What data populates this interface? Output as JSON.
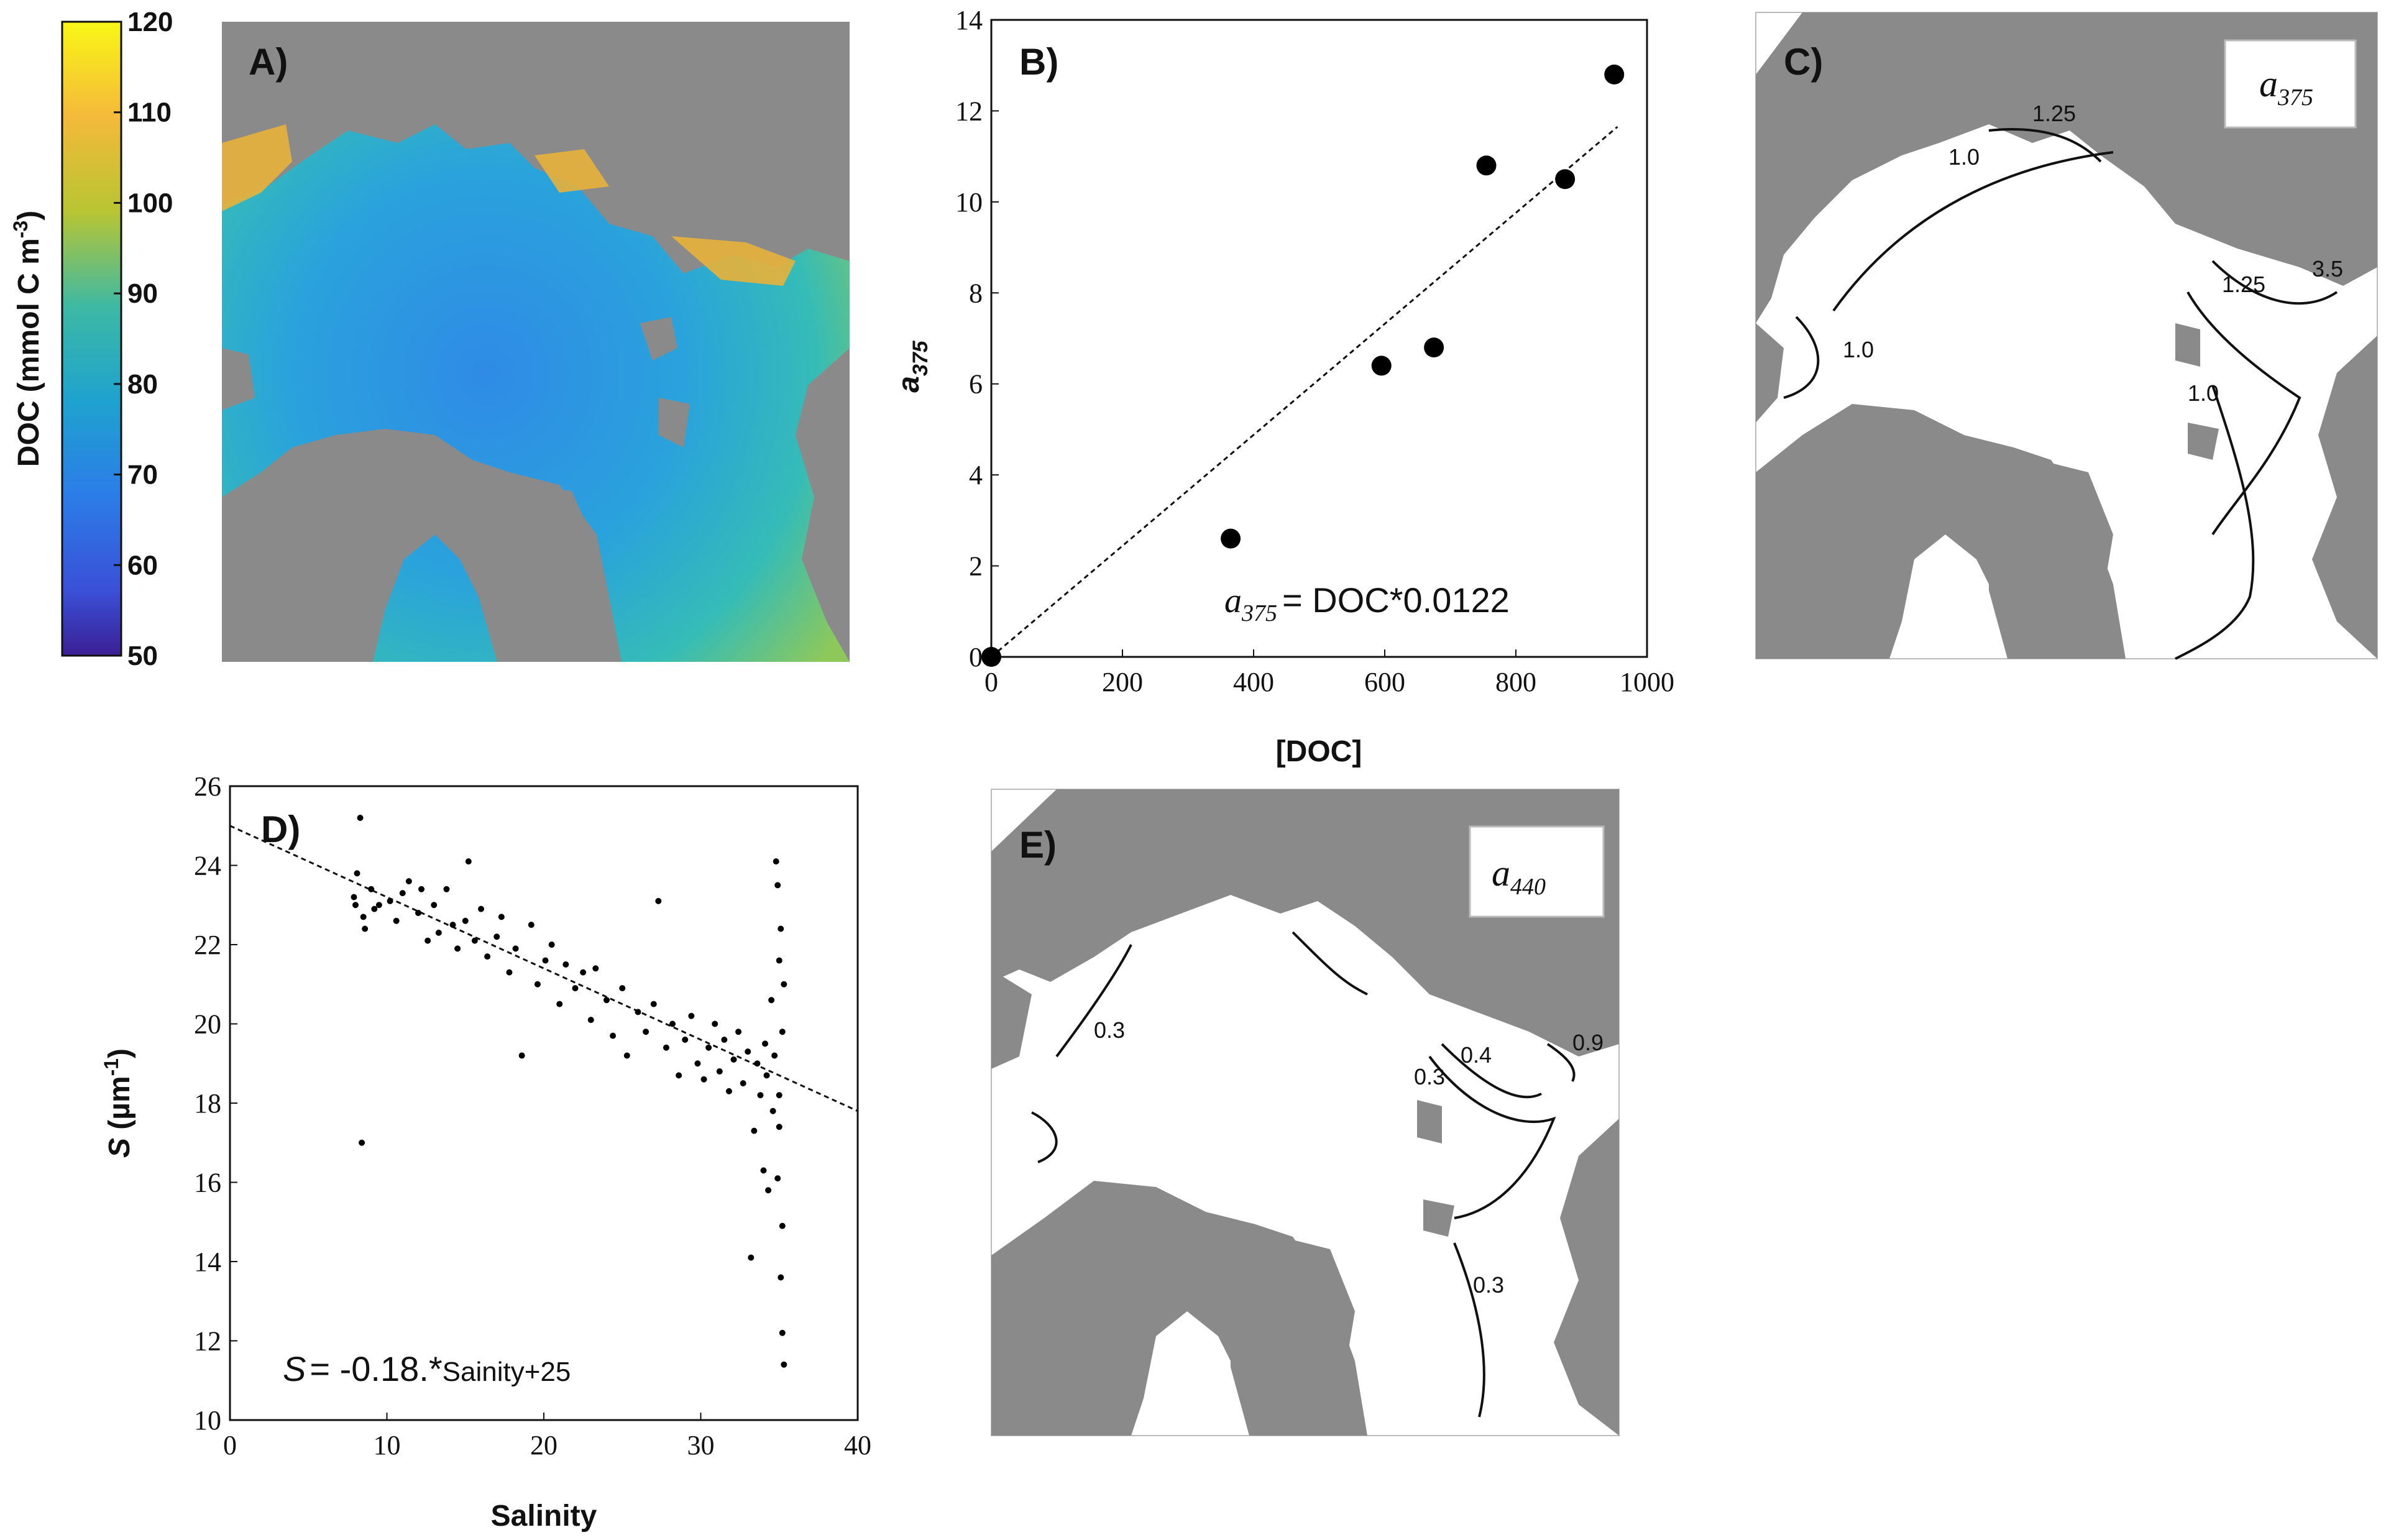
{
  "colorbar": {
    "label": "DOC (mmol C m",
    "label_sup": "-3",
    "label_close": ")",
    "ticks": [
      "120",
      "110",
      "100",
      "90",
      "80",
      "70",
      "60",
      "50"
    ],
    "range": [
      50,
      120
    ]
  },
  "panels": {
    "A": {
      "label": "A)"
    },
    "B": {
      "label": "B)"
    },
    "C": {
      "label": "C)",
      "box_main": "a",
      "box_sub": "375",
      "contours": [
        "1.25",
        "1.0",
        "1.25",
        "3.5",
        "1.0",
        "1.0"
      ]
    },
    "D": {
      "label": "D)"
    },
    "E": {
      "label": "E)",
      "box_main": "a",
      "box_sub": "440",
      "contours": [
        "0.3",
        "0.4",
        "0.9",
        "0.3",
        "0.3"
      ]
    }
  },
  "chart_data": [
    {
      "id": "B",
      "type": "scatter",
      "xlabel": "[DOC]",
      "ylabel_main": "a",
      "ylabel_sub": "375",
      "xlim": [
        0,
        1000
      ],
      "ylim": [
        0,
        14
      ],
      "xticks": [
        "0",
        "200",
        "400",
        "600",
        "800",
        "1000"
      ],
      "yticks": [
        "0",
        "2",
        "4",
        "6",
        "8",
        "10",
        "12",
        "14"
      ],
      "points": [
        [
          0,
          0
        ],
        [
          365,
          2.6
        ],
        [
          595,
          6.4
        ],
        [
          675,
          6.8
        ],
        [
          755,
          10.8
        ],
        [
          875,
          10.5
        ],
        [
          950,
          12.8
        ]
      ],
      "fit": {
        "slope": 0.0122,
        "intercept": 0
      },
      "equation": {
        "lhs_main": "a",
        "lhs_sub": "375",
        "rhs": "= DOC*0.0122"
      }
    },
    {
      "id": "D",
      "type": "scatter",
      "xlabel": "Salinity",
      "ylabel_main": "S",
      "ylabel_unit": " (µm",
      "ylabel_sup": "-1",
      "ylabel_close": ")",
      "xlim": [
        0,
        40
      ],
      "ylim": [
        10,
        26
      ],
      "xticks": [
        "0",
        "10",
        "20",
        "30",
        "40"
      ],
      "yticks": [
        "10",
        "12",
        "14",
        "16",
        "18",
        "20",
        "22",
        "24",
        "26"
      ],
      "fit": {
        "slope": -0.18,
        "intercept": 25
      },
      "equation": {
        "lhs": "S",
        "rhs_a": "= -0.18.*",
        "rhs_b": "Sainity+25"
      },
      "points": [
        [
          8.3,
          25.2
        ],
        [
          8.4,
          17.0
        ],
        [
          8.1,
          23.8
        ],
        [
          8.0,
          23.0
        ],
        [
          8.5,
          22.7
        ],
        [
          9.0,
          23.4
        ],
        [
          8.6,
          22.4
        ],
        [
          9.2,
          22.9
        ],
        [
          7.9,
          23.2
        ],
        [
          9.5,
          23.0
        ],
        [
          10.2,
          23.1
        ],
        [
          10.6,
          22.6
        ],
        [
          11.0,
          23.3
        ],
        [
          11.4,
          23.6
        ],
        [
          12.0,
          22.8
        ],
        [
          12.2,
          23.4
        ],
        [
          12.6,
          22.1
        ],
        [
          13.0,
          23.0
        ],
        [
          13.3,
          22.3
        ],
        [
          13.8,
          23.4
        ],
        [
          14.2,
          22.5
        ],
        [
          14.5,
          21.9
        ],
        [
          15.0,
          22.6
        ],
        [
          15.2,
          24.1
        ],
        [
          15.6,
          22.1
        ],
        [
          16.0,
          22.9
        ],
        [
          16.4,
          21.7
        ],
        [
          17.0,
          22.2
        ],
        [
          17.3,
          22.7
        ],
        [
          17.8,
          21.3
        ],
        [
          18.2,
          21.9
        ],
        [
          18.6,
          19.2
        ],
        [
          19.2,
          22.5
        ],
        [
          19.6,
          21.0
        ],
        [
          20.1,
          21.6
        ],
        [
          20.5,
          22.0
        ],
        [
          21.0,
          20.5
        ],
        [
          21.4,
          21.5
        ],
        [
          22.0,
          20.9
        ],
        [
          22.5,
          21.3
        ],
        [
          23.0,
          20.1
        ],
        [
          23.3,
          21.4
        ],
        [
          24.0,
          20.6
        ],
        [
          24.4,
          19.7
        ],
        [
          25.0,
          20.9
        ],
        [
          25.3,
          19.2
        ],
        [
          26.0,
          20.3
        ],
        [
          26.5,
          19.8
        ],
        [
          27.0,
          20.5
        ],
        [
          27.3,
          23.1
        ],
        [
          27.8,
          19.4
        ],
        [
          28.2,
          20.0
        ],
        [
          28.6,
          18.7
        ],
        [
          29.0,
          19.6
        ],
        [
          29.4,
          20.2
        ],
        [
          29.8,
          19.0
        ],
        [
          30.2,
          18.6
        ],
        [
          30.5,
          19.4
        ],
        [
          30.9,
          20.0
        ],
        [
          31.2,
          18.8
        ],
        [
          31.5,
          19.6
        ],
        [
          31.8,
          18.3
        ],
        [
          32.1,
          19.1
        ],
        [
          32.4,
          19.8
        ],
        [
          32.7,
          18.5
        ],
        [
          33.0,
          19.3
        ],
        [
          33.2,
          14.1
        ],
        [
          33.4,
          17.3
        ],
        [
          33.6,
          19.0
        ],
        [
          33.8,
          18.2
        ],
        [
          34.0,
          16.3
        ],
        [
          34.1,
          19.5
        ],
        [
          34.2,
          18.7
        ],
        [
          34.3,
          15.8
        ],
        [
          34.5,
          20.6
        ],
        [
          34.6,
          17.8
        ],
        [
          34.7,
          19.2
        ],
        [
          34.8,
          24.1
        ],
        [
          34.9,
          23.5
        ],
        [
          35.0,
          18.2
        ],
        [
          35.0,
          21.6
        ],
        [
          35.1,
          22.4
        ],
        [
          35.2,
          14.9
        ],
        [
          35.2,
          12.2
        ],
        [
          35.3,
          11.4
        ],
        [
          35.1,
          13.6
        ],
        [
          34.9,
          16.1
        ],
        [
          35.0,
          17.4
        ],
        [
          35.2,
          19.8
        ],
        [
          35.3,
          21.0
        ]
      ]
    }
  ]
}
